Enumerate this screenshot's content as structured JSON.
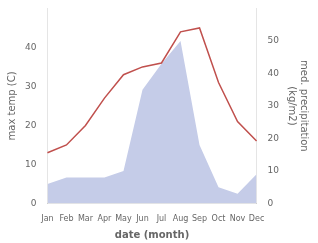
{
  "chart_data": {
    "type": "line",
    "xlabel": "date (month)",
    "ylabel": "max temp (C)",
    "y2label": "med. precipitation\n(kg/m2)",
    "categories": [
      "Jan",
      "Feb",
      "Mar",
      "Apr",
      "May",
      "Jun",
      "Jul",
      "Aug",
      "Sep",
      "Oct",
      "Nov",
      "Dec"
    ],
    "series": [
      {
        "type": "line",
        "color": "#c0504d",
        "values": [
          13,
          15,
          20,
          27,
          33,
          35,
          36,
          44,
          45,
          31,
          21,
          16
        ]
      },
      {
        "type": "area",
        "color": "#c5cce8",
        "axis": "y2",
        "values": [
          6,
          8,
          8,
          8,
          10,
          35,
          43,
          50,
          18,
          5,
          3,
          9
        ]
      }
    ],
    "ylim": [
      0,
      50
    ],
    "yticks": [
      0,
      10,
      20,
      30,
      40
    ],
    "y2lim": [
      0,
      60
    ],
    "y2ticks": [
      0,
      10,
      20,
      30,
      40,
      50
    ],
    "grid": false
  }
}
